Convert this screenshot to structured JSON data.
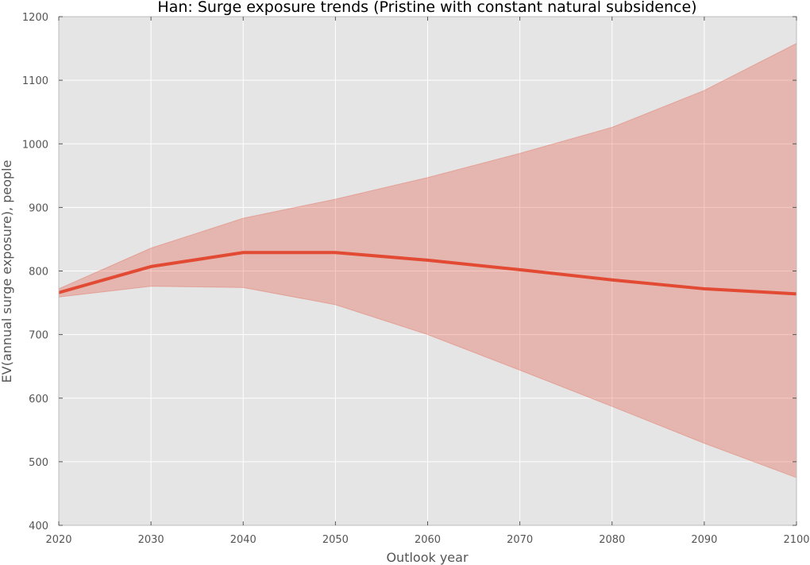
{
  "chart_data": {
    "type": "area",
    "title": "Han: Surge exposure trends (Pristine with constant natural subsidence)",
    "xlabel": "Outlook year",
    "ylabel": "EV(annual surge exposure), people",
    "xlim": [
      2020,
      2100
    ],
    "ylim": [
      400,
      1200
    ],
    "xticks": [
      2020,
      2030,
      2040,
      2050,
      2060,
      2070,
      2080,
      2090,
      2100
    ],
    "yticks": [
      400,
      500,
      600,
      700,
      800,
      900,
      1000,
      1100,
      1200
    ],
    "grid": true,
    "x": [
      2020,
      2030,
      2040,
      2050,
      2060,
      2070,
      2080,
      2090,
      2100
    ],
    "series": [
      {
        "values": [
          766,
          807,
          829,
          829,
          817,
          802,
          786,
          772,
          764
        ],
        "lower": [
          759,
          776,
          774,
          747,
          700,
          644,
          587,
          529,
          475
        ],
        "upper": [
          772,
          836,
          883,
          913,
          947,
          985,
          1026,
          1084,
          1158
        ],
        "color": "#e24a33",
        "band_color": "#e24a33"
      }
    ],
    "background_color": "#e5e5e5",
    "grid_color": "#ffffff"
  }
}
